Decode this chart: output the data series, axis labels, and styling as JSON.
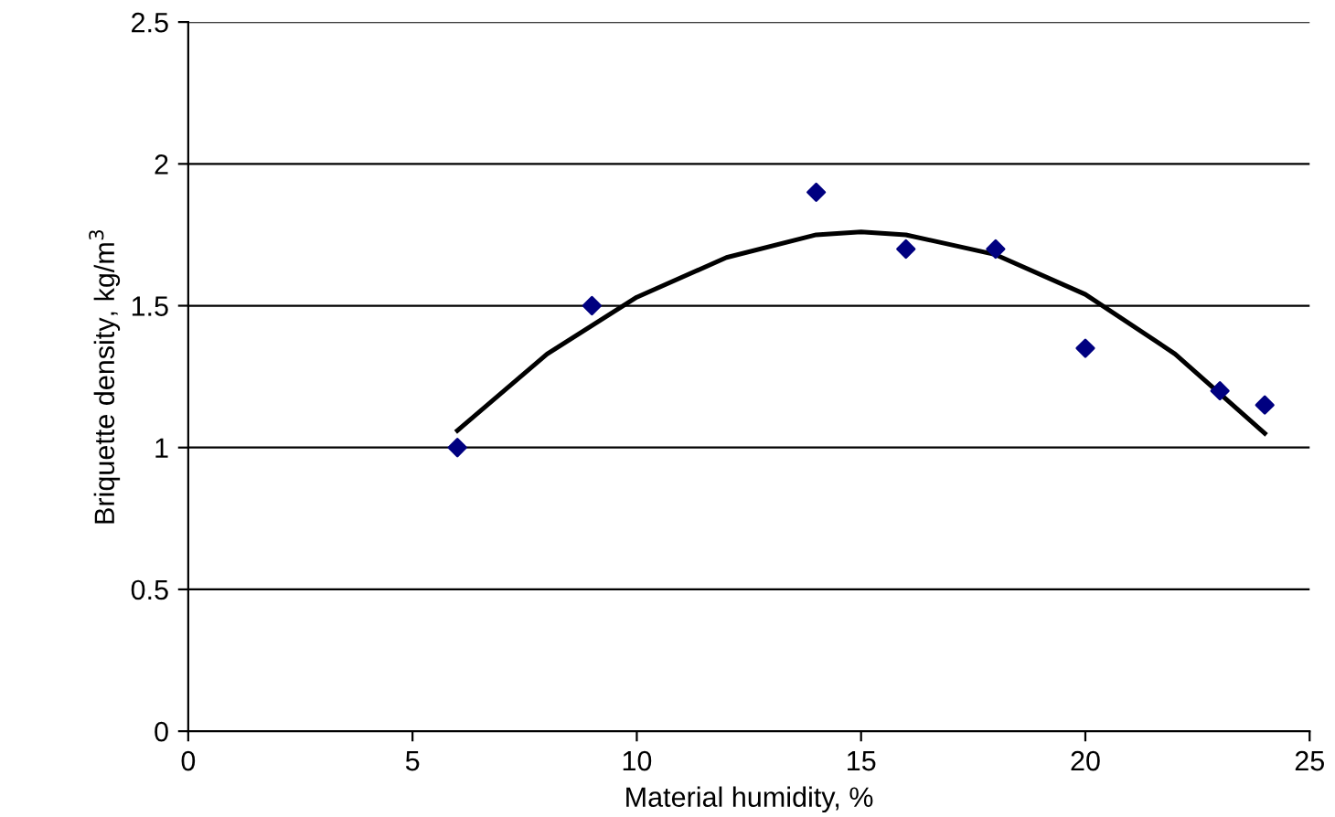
{
  "chart_data": {
    "type": "scatter",
    "xlabel": "Material humidity, %",
    "ylabel": "Briquette density, kg/m$^{3}$",
    "xlim": [
      0,
      25
    ],
    "xticks": [
      0,
      5,
      10,
      15,
      20,
      25
    ],
    "ylim": [
      0,
      2.5
    ],
    "yticks": [
      0,
      0.5,
      1,
      1.5,
      2,
      2.5
    ],
    "grid": "y",
    "series": [
      {
        "color": "#000080",
        "marker": "diamond",
        "x": [
          6,
          9,
          14,
          16,
          18,
          20,
          23,
          24
        ],
        "values": [
          1.0,
          1.5,
          1.9,
          1.7,
          1.7,
          1.35,
          1.2,
          1.15
        ]
      },
      {
        "type": "line",
        "color": "#000000",
        "marker": "none",
        "line_style": "solid",
        "x": [
          6,
          8,
          10,
          12,
          14,
          15,
          16,
          18,
          20,
          22,
          24
        ],
        "values": [
          1.06,
          1.33,
          1.53,
          1.67,
          1.75,
          1.76,
          1.75,
          1.68,
          1.54,
          1.33,
          1.05
        ]
      }
    ]
  }
}
